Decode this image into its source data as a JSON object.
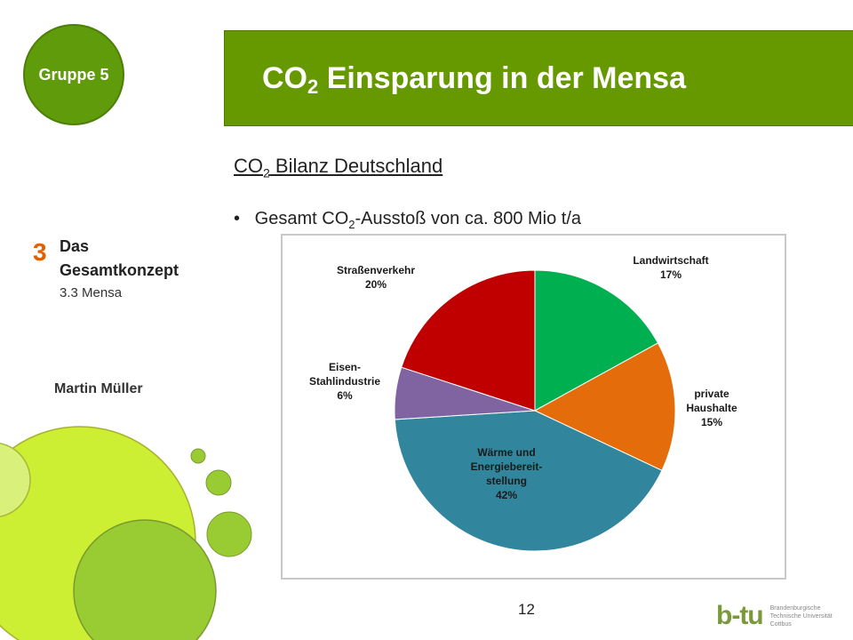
{
  "group_label": "Gruppe 5",
  "title": {
    "main": "CO",
    "sub": "2",
    "rest": " Einsparung in der Mensa"
  },
  "subtitle": {
    "main": "CO",
    "sub": "2",
    "rest": " Bilanz Deutschland"
  },
  "bullet": {
    "main": "Gesamt CO",
    "sub": "2",
    "rest": "-Ausstoß von ca. 800 Mio t/a"
  },
  "section": {
    "number": "3",
    "title_line1": "Das",
    "title_line2": "Gesamtkonzept",
    "subtitle": "3.3 Mensa"
  },
  "author": "Martin Müller",
  "page_number": "12",
  "logo": {
    "mark": "b-tu",
    "text": "Brandenburgische\nTechnische Universität\nCottbus"
  },
  "colors": {
    "accent_green": "#669900",
    "section_orange": "#e06000"
  },
  "chart_data": {
    "type": "pie",
    "slices": [
      {
        "label_lines": [
          "Landwirtschaft"
        ],
        "percent_label": "17%",
        "value": 17,
        "color": "#00b050"
      },
      {
        "label_lines": [
          "private",
          "Haushalte"
        ],
        "percent_label": "15%",
        "value": 15,
        "color": "#e46c0a"
      },
      {
        "label_lines": [
          "Wärme und",
          "Energiebereit-",
          "stellung"
        ],
        "percent_label": "42%",
        "value": 42,
        "color": "#31859c"
      },
      {
        "label_lines": [
          "Eisen-",
          "Stahlindustrie"
        ],
        "percent_label": "6%",
        "value": 6,
        "color": "#8064a2"
      },
      {
        "label_lines": [
          "Straßenverkehr"
        ],
        "percent_label": "20%",
        "value": 20,
        "color": "#c00000"
      }
    ]
  }
}
